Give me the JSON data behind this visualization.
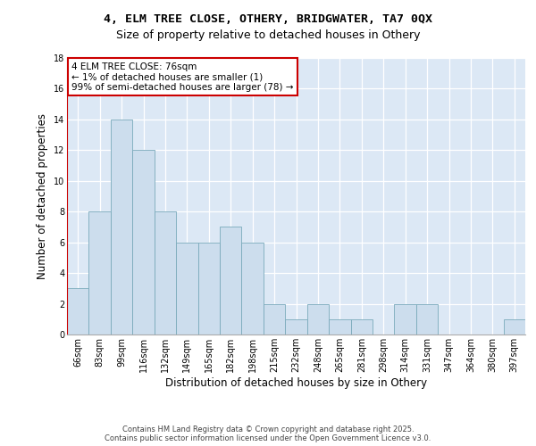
{
  "title_line1": "4, ELM TREE CLOSE, OTHERY, BRIDGWATER, TA7 0QX",
  "title_line2": "Size of property relative to detached houses in Othery",
  "xlabel": "Distribution of detached houses by size in Othery",
  "ylabel": "Number of detached properties",
  "categories": [
    "66sqm",
    "83sqm",
    "99sqm",
    "116sqm",
    "132sqm",
    "149sqm",
    "165sqm",
    "182sqm",
    "198sqm",
    "215sqm",
    "232sqm",
    "248sqm",
    "265sqm",
    "281sqm",
    "298sqm",
    "314sqm",
    "331sqm",
    "347sqm",
    "364sqm",
    "380sqm",
    "397sqm"
  ],
  "values": [
    3,
    8,
    14,
    12,
    8,
    6,
    6,
    7,
    6,
    2,
    1,
    2,
    1,
    1,
    0,
    2,
    2,
    0,
    0,
    0,
    1
  ],
  "bar_color": "#ccdded",
  "bar_edge_color": "#7aaabb",
  "annotation_text": "4 ELM TREE CLOSE: 76sqm\n← 1% of detached houses are smaller (1)\n99% of semi-detached houses are larger (78) →",
  "annotation_box_color": "#ffffff",
  "annotation_box_edge": "#cc0000",
  "vline_color": "#cc0000",
  "ylim": [
    0,
    18
  ],
  "yticks": [
    0,
    2,
    4,
    6,
    8,
    10,
    12,
    14,
    16,
    18
  ],
  "footer_text": "Contains HM Land Registry data © Crown copyright and database right 2025.\nContains public sector information licensed under the Open Government Licence v3.0.",
  "bg_color": "#dce8f5",
  "grid_color": "#ffffff",
  "title_fontsize": 9.5,
  "subtitle_fontsize": 9,
  "tick_fontsize": 7,
  "label_fontsize": 8.5,
  "annotation_fontsize": 7.5
}
